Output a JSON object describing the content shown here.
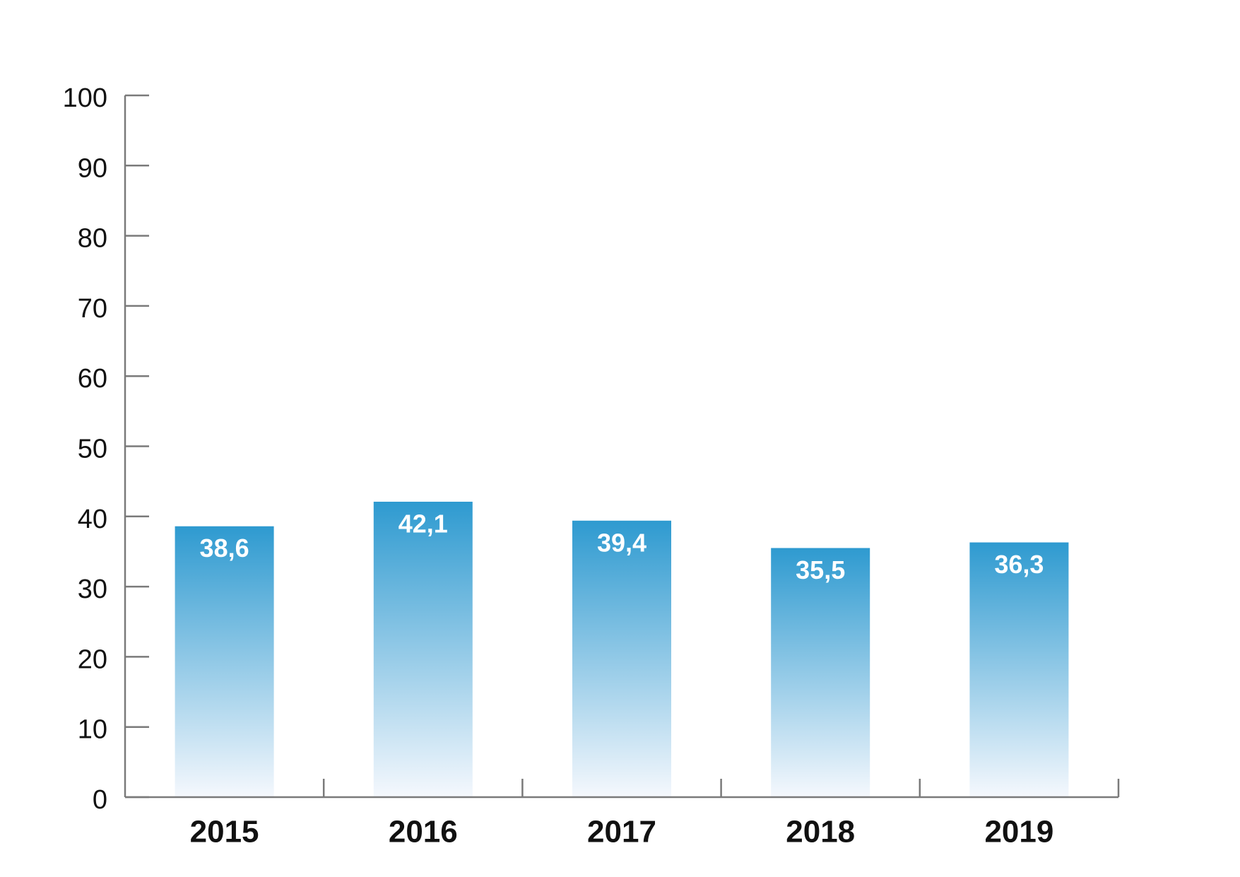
{
  "chart_data": {
    "type": "bar",
    "categories": [
      "2015",
      "2016",
      "2017",
      "2018",
      "2019"
    ],
    "values": [
      38.6,
      42.1,
      39.4,
      35.5,
      36.3
    ],
    "value_labels": [
      "38,6",
      "42,1",
      "39,4",
      "35,5",
      "36,3"
    ],
    "color": "#2e9ad0",
    "ylim": [
      0,
      100
    ],
    "yticks": [
      0,
      10,
      20,
      30,
      40,
      50,
      60,
      70,
      80,
      90,
      100
    ]
  }
}
